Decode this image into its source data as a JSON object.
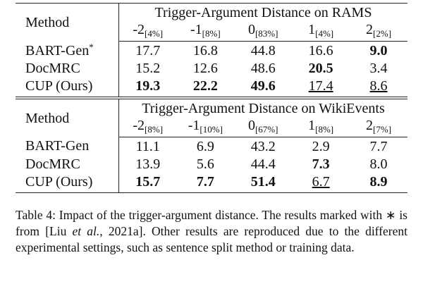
{
  "tables": [
    {
      "method_header": "Method",
      "group_title": "Trigger-Argument Distance on RAMS",
      "columns": [
        {
          "main": "-2",
          "sub": "[4%]"
        },
        {
          "main": "-1",
          "sub": "[8%]"
        },
        {
          "main": "0",
          "sub": "[83%]"
        },
        {
          "main": "1",
          "sub": "[4%]"
        },
        {
          "main": "2",
          "sub": "[2%]"
        }
      ],
      "rows": [
        {
          "method": "BART-Gen",
          "mark": "*",
          "cells": [
            "17.7",
            "16.8",
            "44.8",
            "16.6",
            "9.0"
          ],
          "bold": [
            4
          ],
          "underline": []
        },
        {
          "method": "DocMRC",
          "cells": [
            "15.2",
            "12.6",
            "48.6",
            "20.5",
            "3.4"
          ],
          "bold": [
            3
          ],
          "underline": []
        },
        {
          "method": "CUP (Ours)",
          "cells": [
            "19.3",
            "22.2",
            "49.6",
            "17.4",
            "8.6"
          ],
          "bold": [
            0,
            1,
            2
          ],
          "underline": [
            3,
            4
          ]
        }
      ]
    },
    {
      "method_header": "Method",
      "group_title": "Trigger-Argument Distance on WikiEvents",
      "columns": [
        {
          "main": "-2",
          "sub": "[8%]"
        },
        {
          "main": "-1",
          "sub": "[10%]"
        },
        {
          "main": "0",
          "sub": "[67%]"
        },
        {
          "main": "1",
          "sub": "[8%]"
        },
        {
          "main": "2",
          "sub": "[7%]"
        }
      ],
      "rows": [
        {
          "method": "BART-Gen",
          "cells": [
            "11.1",
            "6.9",
            "43.2",
            "2.9",
            "7.7"
          ],
          "bold": [],
          "underline": []
        },
        {
          "method": "DocMRC",
          "cells": [
            "13.9",
            "5.6",
            "44.4",
            "7.3",
            "8.0"
          ],
          "bold": [
            3
          ],
          "underline": []
        },
        {
          "method": "CUP (Ours)",
          "cells": [
            "15.7",
            "7.7",
            "51.4",
            "6.7",
            "8.9"
          ],
          "bold": [
            0,
            1,
            2,
            4
          ],
          "underline": [
            3
          ]
        }
      ]
    }
  ],
  "caption": [
    {
      "text": "Table 4:  Impact of the trigger-argument distance.  The results marked with ∗ is from [Liu "
    },
    {
      "text": "et al.",
      "italic": true
    },
    {
      "text": ", 2021a].  Other results are reproduced due to the different experimental settings, such as sentence split method or training data."
    }
  ]
}
